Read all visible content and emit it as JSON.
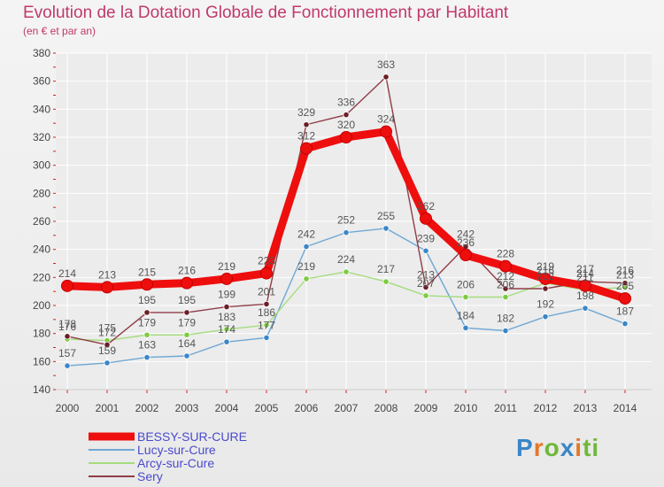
{
  "header": {
    "title": "Evolution de la Dotation Globale de Fonctionnement par Habitant",
    "subtitle": "(en € et par an)"
  },
  "logo": {
    "text": "Proxiti",
    "parts": [
      "P",
      "r",
      "o",
      "x",
      "i",
      "ti"
    ]
  },
  "colors": {
    "background": "#efefef",
    "grid": "#ffffff",
    "axis_text": "#444444",
    "label_text": "#555555",
    "tick_red": "#e81818"
  },
  "chart_data": {
    "type": "line",
    "title": "Evolution de la Dotation Globale de Fonctionnement par Habitant",
    "subtitle": "(en € et par an)",
    "xlabel": "",
    "ylabel": "",
    "x": [
      "2000",
      "2001",
      "2002",
      "2003",
      "2004",
      "2005",
      "2006",
      "2007",
      "2008",
      "2009",
      "2010",
      "2011",
      "2012",
      "2013",
      "2014"
    ],
    "ylim": [
      140,
      380
    ],
    "yticks": [
      140,
      160,
      180,
      200,
      220,
      240,
      260,
      280,
      300,
      320,
      340,
      360,
      380
    ],
    "grid": true,
    "legend": "bottom-left",
    "series": [
      {
        "name": "BESSY-SUR-CURE",
        "color": "#ee0e0e",
        "marker": "#ee0e0e",
        "width": "thick",
        "values": [
          214,
          213,
          215,
          216,
          219,
          223,
          312,
          320,
          324,
          262,
          236,
          228,
          219,
          214,
          205
        ]
      },
      {
        "name": "Lucy-sur-Cure",
        "color": "#6fa7d4",
        "marker": "#3a86c8",
        "width": "thin",
        "values": [
          157,
          159,
          163,
          164,
          174,
          177,
          242,
          252,
          255,
          239,
          184,
          182,
          192,
          198,
          187
        ]
      },
      {
        "name": "Arcy-sur-Cure",
        "color": "#a5dc7e",
        "marker": "#7ccb3f",
        "width": "thin",
        "values": [
          176,
          175,
          179,
          179,
          183,
          186,
          219,
          224,
          217,
          207,
          206,
          206,
          216,
          211,
          213
        ]
      },
      {
        "name": "Sery",
        "color": "#8f3d48",
        "marker": "#6b1e26",
        "width": "thin",
        "values": [
          178,
          172,
          195,
          195,
          199,
          201,
          329,
          336,
          363,
          213,
          242,
          212,
          212,
          217,
          216
        ]
      }
    ]
  }
}
